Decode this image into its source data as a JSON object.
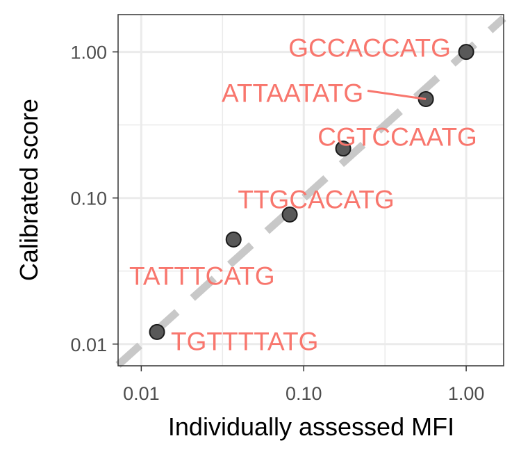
{
  "chart_data": {
    "type": "scatter",
    "title": "",
    "xlabel": "Individually assessed MFI",
    "ylabel": "Calibrated score",
    "xscale": "log10",
    "yscale": "log10",
    "xlim": [
      0.0072,
      1.7
    ],
    "ylim": [
      0.0071,
      1.8
    ],
    "x_ticks": [
      0.01,
      0.1,
      1.0
    ],
    "x_tick_labels": [
      "0.01",
      "0.10",
      "1.00"
    ],
    "y_ticks": [
      0.01,
      0.1,
      1.0
    ],
    "y_tick_labels": [
      "0.01",
      "0.10",
      "1.00"
    ],
    "grid": true,
    "reference_line": "y = x (dashed, grey)",
    "point_color": "#595959",
    "label_color": "#f8766d",
    "grid_color": "#ebebeb",
    "reference_line_color": "#c8c8c8",
    "points": [
      {
        "label": "TGTTTTATG",
        "x": 0.0125,
        "y": 0.0121
      },
      {
        "label": "TATTTCATG",
        "x": 0.037,
        "y": 0.052
      },
      {
        "label": "TTGCACATG",
        "x": 0.082,
        "y": 0.077
      },
      {
        "label": "CGTCCAATG",
        "x": 0.175,
        "y": 0.218
      },
      {
        "label": "ATTAATATG",
        "x": 0.565,
        "y": 0.475
      },
      {
        "label": "GCCACCATG",
        "x": 1.0,
        "y": 1.0
      }
    ]
  }
}
